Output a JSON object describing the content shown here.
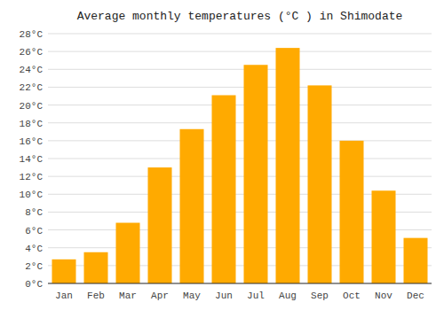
{
  "chart_data": {
    "type": "bar",
    "title": "Average monthly temperatures (°C ) in Shimodate",
    "categories": [
      "Jan",
      "Feb",
      "Mar",
      "Apr",
      "May",
      "Jun",
      "Jul",
      "Aug",
      "Sep",
      "Oct",
      "Nov",
      "Dec"
    ],
    "values": [
      2.7,
      3.5,
      6.8,
      13.0,
      17.3,
      21.1,
      24.5,
      26.4,
      22.2,
      16.0,
      10.4,
      5.1
    ],
    "color": "#FFAA00",
    "ylim": [
      0,
      28
    ],
    "yticks": [
      {
        "value": 0,
        "label": "0°C"
      },
      {
        "value": 2,
        "label": "2°C"
      },
      {
        "value": 4,
        "label": "4°C"
      },
      {
        "value": 6,
        "label": "6°C"
      },
      {
        "value": 8,
        "label": "8°C"
      },
      {
        "value": 10,
        "label": "10°C"
      },
      {
        "value": 12,
        "label": "12°C"
      },
      {
        "value": 14,
        "label": "14°C"
      },
      {
        "value": 16,
        "label": "16°C"
      },
      {
        "value": 18,
        "label": "18°C"
      },
      {
        "value": 20,
        "label": "20°C"
      },
      {
        "value": 22,
        "label": "22°C"
      },
      {
        "value": 24,
        "label": "24°C"
      },
      {
        "value": 26,
        "label": "26°C"
      },
      {
        "value": 28,
        "label": "28°C"
      }
    ],
    "grid": true
  }
}
